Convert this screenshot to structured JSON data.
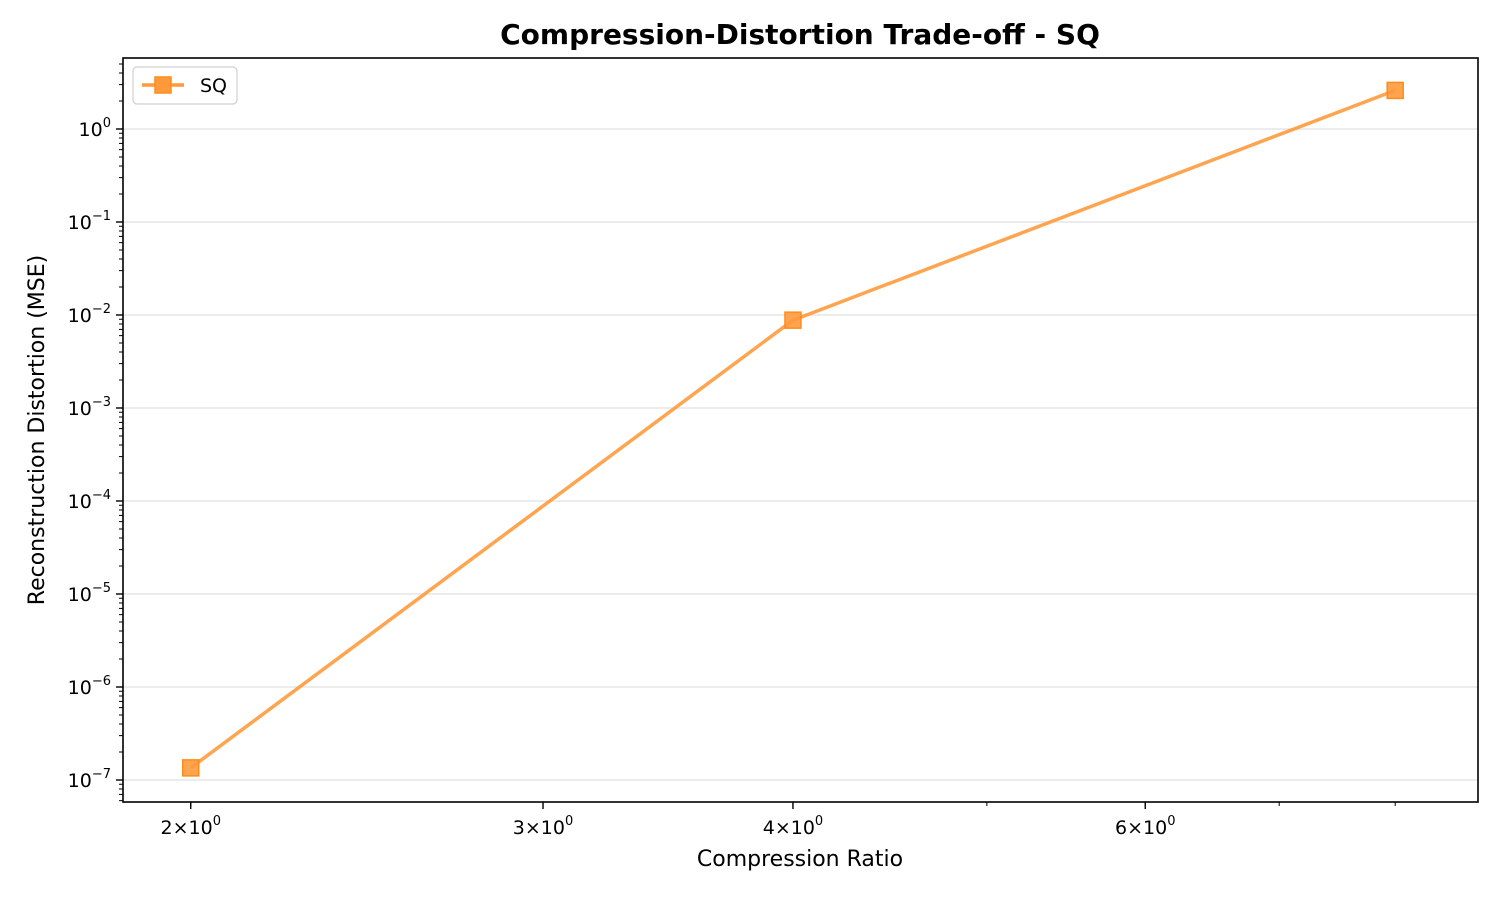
{
  "chart_data": {
    "type": "line",
    "title": "Compression-Distortion Trade-off - SQ",
    "xlabel": "Compression Ratio",
    "ylabel": "Reconstruction Distortion (MSE)",
    "x_scale": "log",
    "y_scale": "log",
    "x_ticks": [
      {
        "value": 2,
        "mantissa": "2",
        "base": "10",
        "exp": "0"
      },
      {
        "value": 3,
        "mantissa": "3",
        "base": "10",
        "exp": "0"
      },
      {
        "value": 4,
        "mantissa": "4",
        "base": "10",
        "exp": "0"
      },
      {
        "value": 6,
        "mantissa": "6",
        "base": "10",
        "exp": "0"
      }
    ],
    "y_ticks": [
      {
        "value": 1e-07,
        "base": "10",
        "exp": "−7"
      },
      {
        "value": 1e-06,
        "base": "10",
        "exp": "−6"
      },
      {
        "value": 1e-05,
        "base": "10",
        "exp": "−5"
      },
      {
        "value": 0.0001,
        "base": "10",
        "exp": "−4"
      },
      {
        "value": 0.001,
        "base": "10",
        "exp": "−3"
      },
      {
        "value": 0.01,
        "base": "10",
        "exp": "−2"
      },
      {
        "value": 0.1,
        "base": "10",
        "exp": "−1"
      },
      {
        "value": 1,
        "base": "10",
        "exp": "0"
      }
    ],
    "xlim": [
      1.85,
      8.8
    ],
    "ylim": [
      5.8e-08,
      5.8
    ],
    "grid": "y-major",
    "legend_position": "top-left",
    "series": [
      {
        "name": "SQ",
        "color": "#ff9a3c",
        "marker": "square",
        "x": [
          2,
          4,
          8
        ],
        "y": [
          1.35e-07,
          0.0088,
          2.6
        ]
      }
    ]
  }
}
